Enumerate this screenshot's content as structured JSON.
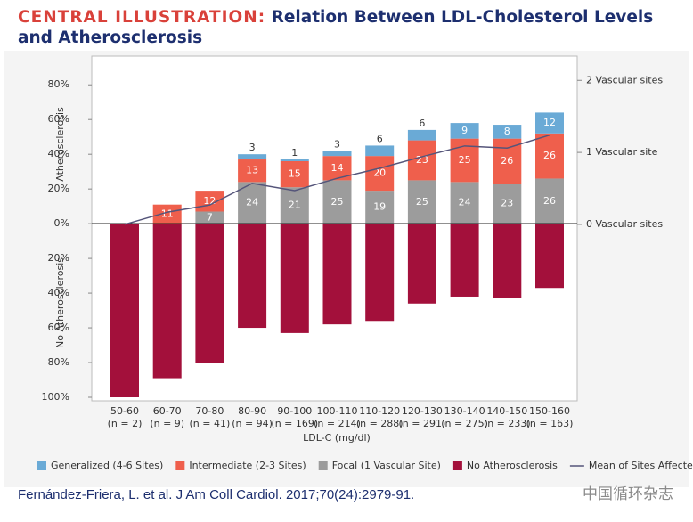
{
  "header": {
    "lead": "CENTRAL ILLUSTRATION:",
    "title": "Relation Between LDL-Cholesterol Levels and Atherosclerosis"
  },
  "chart_data": {
    "type": "diverging-stacked-bar",
    "categories": [
      "50-60",
      "60-70",
      "70-80",
      "80-90",
      "90-100",
      "100-110",
      "110-120",
      "120-130",
      "130-140",
      "140-150",
      "150-160"
    ],
    "n_labels": [
      "(n = 2)",
      "(n = 9)",
      "(n = 41)",
      "(n = 94)",
      "(n = 169)",
      "(n = 214)",
      "(n = 288)",
      "(n = 291)",
      "(n = 275)",
      "(n = 233)",
      "(n = 163)"
    ],
    "xlabel": "LDL-C (mg/dl)",
    "ylabel_upper": "Atherosclerosis",
    "ylabel_lower": "No Atherosclerosis",
    "ylim": [
      -100,
      95
    ],
    "yticks": [
      {
        "value": 80,
        "label": "80%"
      },
      {
        "value": 60,
        "label": "60%"
      },
      {
        "value": 40,
        "label": "40%"
      },
      {
        "value": 20,
        "label": "20%"
      },
      {
        "value": 0,
        "label": "0%"
      },
      {
        "value": -20,
        "label": "20%"
      },
      {
        "value": -40,
        "label": "40%"
      },
      {
        "value": -60,
        "label": "60%"
      },
      {
        "value": -80,
        "label": "80%"
      },
      {
        "value": -100,
        "label": "100%"
      }
    ],
    "y2lim": [
      -2.4,
      2.3
    ],
    "y2ticks": [
      {
        "value": 2,
        "label": "2 Vascular sites"
      },
      {
        "value": 1,
        "label": "1 Vascular site"
      },
      {
        "value": 0,
        "label": "0 Vascular sites"
      }
    ],
    "series": [
      {
        "name": "Generalized (4-6 Sites)",
        "color": "#6aaad6",
        "values": [
          null,
          null,
          null,
          3,
          1,
          3,
          6,
          6,
          9,
          8,
          12
        ]
      },
      {
        "name": "Intermediate (2-3 Sites)",
        "color": "#ef5f4c",
        "values": [
          null,
          11,
          12,
          13,
          15,
          14,
          20,
          23,
          25,
          26,
          26
        ]
      },
      {
        "name": "Focal (1 Vascular Site)",
        "color": "#9c9c9c",
        "values": [
          null,
          null,
          7,
          24,
          21,
          25,
          19,
          25,
          24,
          23,
          26
        ]
      },
      {
        "name": "No Atherosclerosis",
        "color": "#a3103b",
        "values": [
          -100,
          -89,
          -80,
          -60,
          -63,
          -58,
          -56,
          -46,
          -42,
          -43,
          -37
        ]
      },
      {
        "name": "Mean of Sites Affected",
        "color": "#55557a",
        "type": "line",
        "axis": "y2",
        "values": [
          0,
          0.17,
          0.27,
          0.57,
          0.47,
          0.64,
          0.78,
          0.94,
          1.09,
          1.06,
          1.24
        ]
      }
    ]
  },
  "citation": "Fernández-Friera, L. et al. J Am Coll Cardiol. 2017;70(24):2979-91.",
  "watermark": "中国循环杂志"
}
